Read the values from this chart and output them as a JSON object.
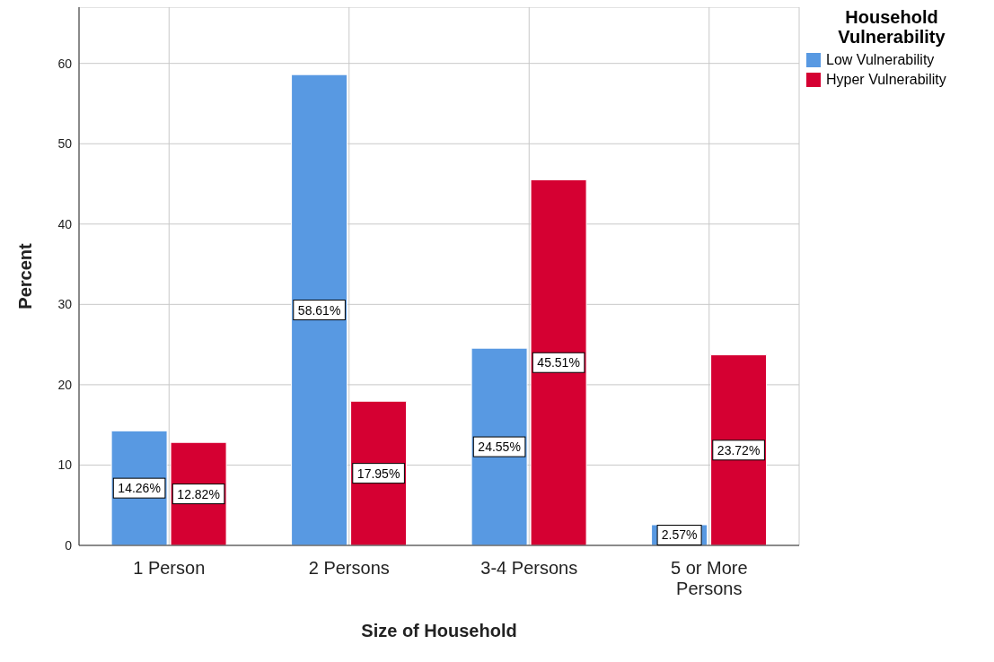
{
  "chart_data": {
    "type": "bar",
    "xlabel": "Size of Household",
    "ylabel": "Percent",
    "legend_title": "Household Vulnerability",
    "categories": [
      "1 Person",
      "2 Persons",
      "3-4 Persons",
      "5 or More Persons"
    ],
    "series": [
      {
        "name": "Low Vulnerability",
        "color": "#5899e2",
        "values": [
          14.26,
          58.61,
          24.55,
          2.57
        ],
        "value_labels": [
          "14.26%",
          "58.61%",
          "24.55%",
          "2.57%"
        ]
      },
      {
        "name": "Hyper Vulnerability",
        "color": "#d50032",
        "values": [
          12.82,
          17.95,
          45.51,
          23.72
        ],
        "value_labels": [
          "12.82%",
          "17.95%",
          "45.51%",
          "23.72%"
        ]
      }
    ],
    "ylim": [
      0,
      67
    ],
    "yticks": [
      0,
      10,
      20,
      30,
      40,
      50,
      60
    ],
    "grid": true,
    "legend": "top right"
  }
}
